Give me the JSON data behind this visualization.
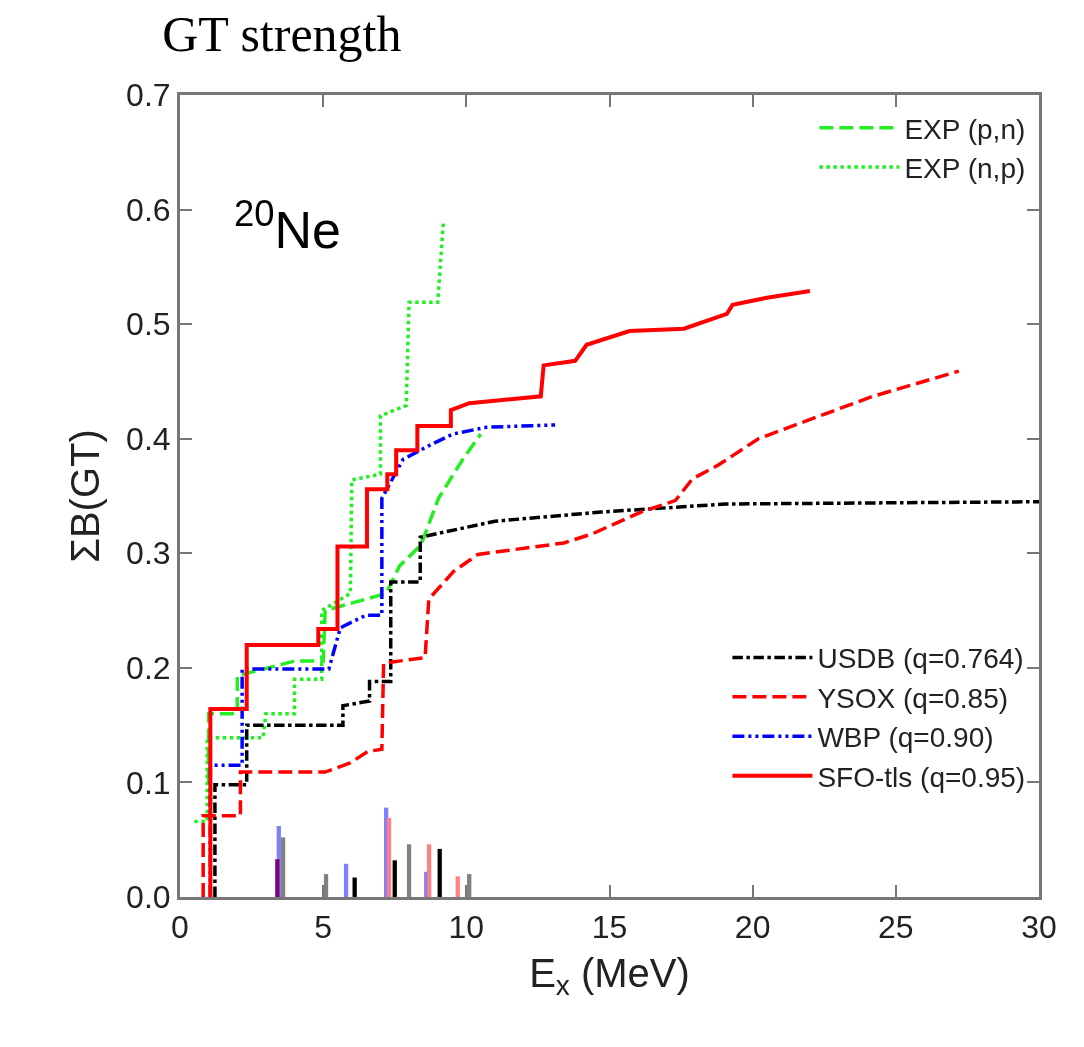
{
  "chart_data": {
    "type": "line",
    "title": "GT strength",
    "xlabel": "E$_{x}$ (MeV)",
    "ylabel": "ΣB(GT)",
    "annotations": [
      "$^{20}$Ne"
    ],
    "xlim": [
      0,
      30
    ],
    "xticks": [
      0,
      5,
      10,
      15,
      20,
      25,
      30
    ],
    "ylim": [
      0,
      0.7
    ],
    "yticks": [
      {
        "value": 0,
        "label": "0.0"
      },
      0.1,
      0.2,
      0.3,
      0.4,
      0.5,
      0.6,
      0.7
    ],
    "legend": "top right",
    "marker": "none",
    "series": [
      {
        "name": "EXP (p,n)",
        "color": "#22ee22",
        "line_style": "dashed",
        "x": [
          1.0,
          1.0,
          2.0,
          2.0,
          4.0,
          5.0,
          5.07,
          7.2,
          7.67,
          8.41,
          9.03,
          9.9,
          10.5
        ],
        "values": [
          0.1,
          0.16,
          0.16,
          0.193,
          0.206,
          0.206,
          0.25,
          0.265,
          0.289,
          0.307,
          0.348,
          0.383,
          0.404
        ]
      },
      {
        "name": "EXP (n,p)",
        "color": "#22ee22",
        "line_style": "dotted",
        "x": [
          0.5,
          0.95,
          0.95,
          2.9,
          3.0,
          4.0,
          4.0,
          4.95,
          4.95,
          5.95,
          6.0,
          7.0,
          7.0,
          7.9,
          8.0,
          9.0,
          9.2
        ],
        "values": [
          0.066,
          0.066,
          0.139,
          0.139,
          0.16,
          0.16,
          0.19,
          0.19,
          0.25,
          0.265,
          0.364,
          0.369,
          0.42,
          0.429,
          0.519,
          0.519,
          0.59
        ]
      },
      {
        "name": "USDB (q=0.764)",
        "color": "#000000",
        "line_style": "dashdot",
        "x": [
          1.22,
          1.22,
          2.33,
          2.33,
          5.69,
          5.69,
          6.62,
          6.62,
          7.36,
          7.36,
          8.39,
          8.39,
          11.0,
          14.7,
          19.05,
          30
        ],
        "values": [
          0,
          0.098,
          0.098,
          0.15,
          0.15,
          0.167,
          0.171,
          0.188,
          0.188,
          0.275,
          0.275,
          0.314,
          0.328,
          0.336,
          0.343,
          0.345
        ]
      },
      {
        "name": "YSOX (q=0.85)",
        "color": "#ff0000",
        "line_style": "dashed",
        "x": [
          0.81,
          0.81,
          2.11,
          2.11,
          5.07,
          5.94,
          6.56,
          7.05,
          7.11,
          8.56,
          8.69,
          9.55,
          10.4,
          13.4,
          14.4,
          16.1,
          17.3,
          17.9,
          18.8,
          20.2,
          21.7,
          24.2,
          27.2
        ],
        "values": [
          0,
          0.071,
          0.071,
          0.109,
          0.109,
          0.117,
          0.127,
          0.129,
          0.204,
          0.209,
          0.26,
          0.284,
          0.299,
          0.309,
          0.317,
          0.336,
          0.346,
          0.365,
          0.377,
          0.4,
          0.414,
          0.437,
          0.459
        ]
      },
      {
        "name": "WBP (q=0.90)",
        "color": "#0000ff",
        "line_style": "dashdotdot",
        "x": [
          1.06,
          1.06,
          2.17,
          2.17,
          5.2,
          5.6,
          6.5,
          7.05,
          7.05,
          7.79,
          8.78,
          9.52,
          10.7,
          13.1
        ],
        "values": [
          0,
          0.115,
          0.115,
          0.199,
          0.199,
          0.235,
          0.246,
          0.246,
          0.348,
          0.382,
          0.395,
          0.404,
          0.41,
          0.412
        ]
      },
      {
        "name": "SFO-tls (q=0.95)",
        "color": "#ff0000",
        "line_style": "solid",
        "x": [
          1.06,
          1.06,
          2.33,
          2.33,
          4.83,
          4.83,
          5.5,
          5.5,
          6.53,
          6.53,
          7.24,
          7.24,
          7.55,
          7.55,
          8.29,
          8.29,
          9.46,
          9.46,
          10.1,
          12.6,
          12.7,
          13.8,
          14.2,
          15.7,
          17.6,
          19.1,
          19.3,
          20.5,
          22.0
        ],
        "values": [
          0,
          0.164,
          0.164,
          0.22,
          0.22,
          0.234,
          0.234,
          0.306,
          0.306,
          0.356,
          0.356,
          0.369,
          0.369,
          0.39,
          0.39,
          0.411,
          0.411,
          0.425,
          0.431,
          0.437,
          0.464,
          0.468,
          0.482,
          0.494,
          0.496,
          0.509,
          0.517,
          0.523,
          0.529
        ]
      },
      {
        "type": "bar",
        "color": "#8080ff",
        "x": [
          3.45,
          5.8,
          7.2,
          8.6
        ],
        "values": [
          0.062,
          0.029,
          0.078,
          0.022
        ]
      },
      {
        "type": "bar",
        "color": "#808080",
        "x": [
          3.6,
          5.1,
          8.0,
          10.1
        ],
        "values": [
          0.052,
          0.02,
          0.046,
          0.02
        ]
      },
      {
        "type": "bar",
        "color": "#ff8080",
        "x": [
          7.3,
          8.7,
          9.7
        ],
        "values": [
          0.069,
          0.046,
          0.018
        ]
      },
      {
        "type": "bar",
        "color": "#000000",
        "x": [
          6.1,
          7.5,
          9.07
        ],
        "values": [
          0.017,
          0.032,
          0.042
        ]
      },
      {
        "type": "bar",
        "color": "#800080",
        "x": [
          3.4
        ],
        "values": [
          0.033
        ]
      }
    ]
  }
}
